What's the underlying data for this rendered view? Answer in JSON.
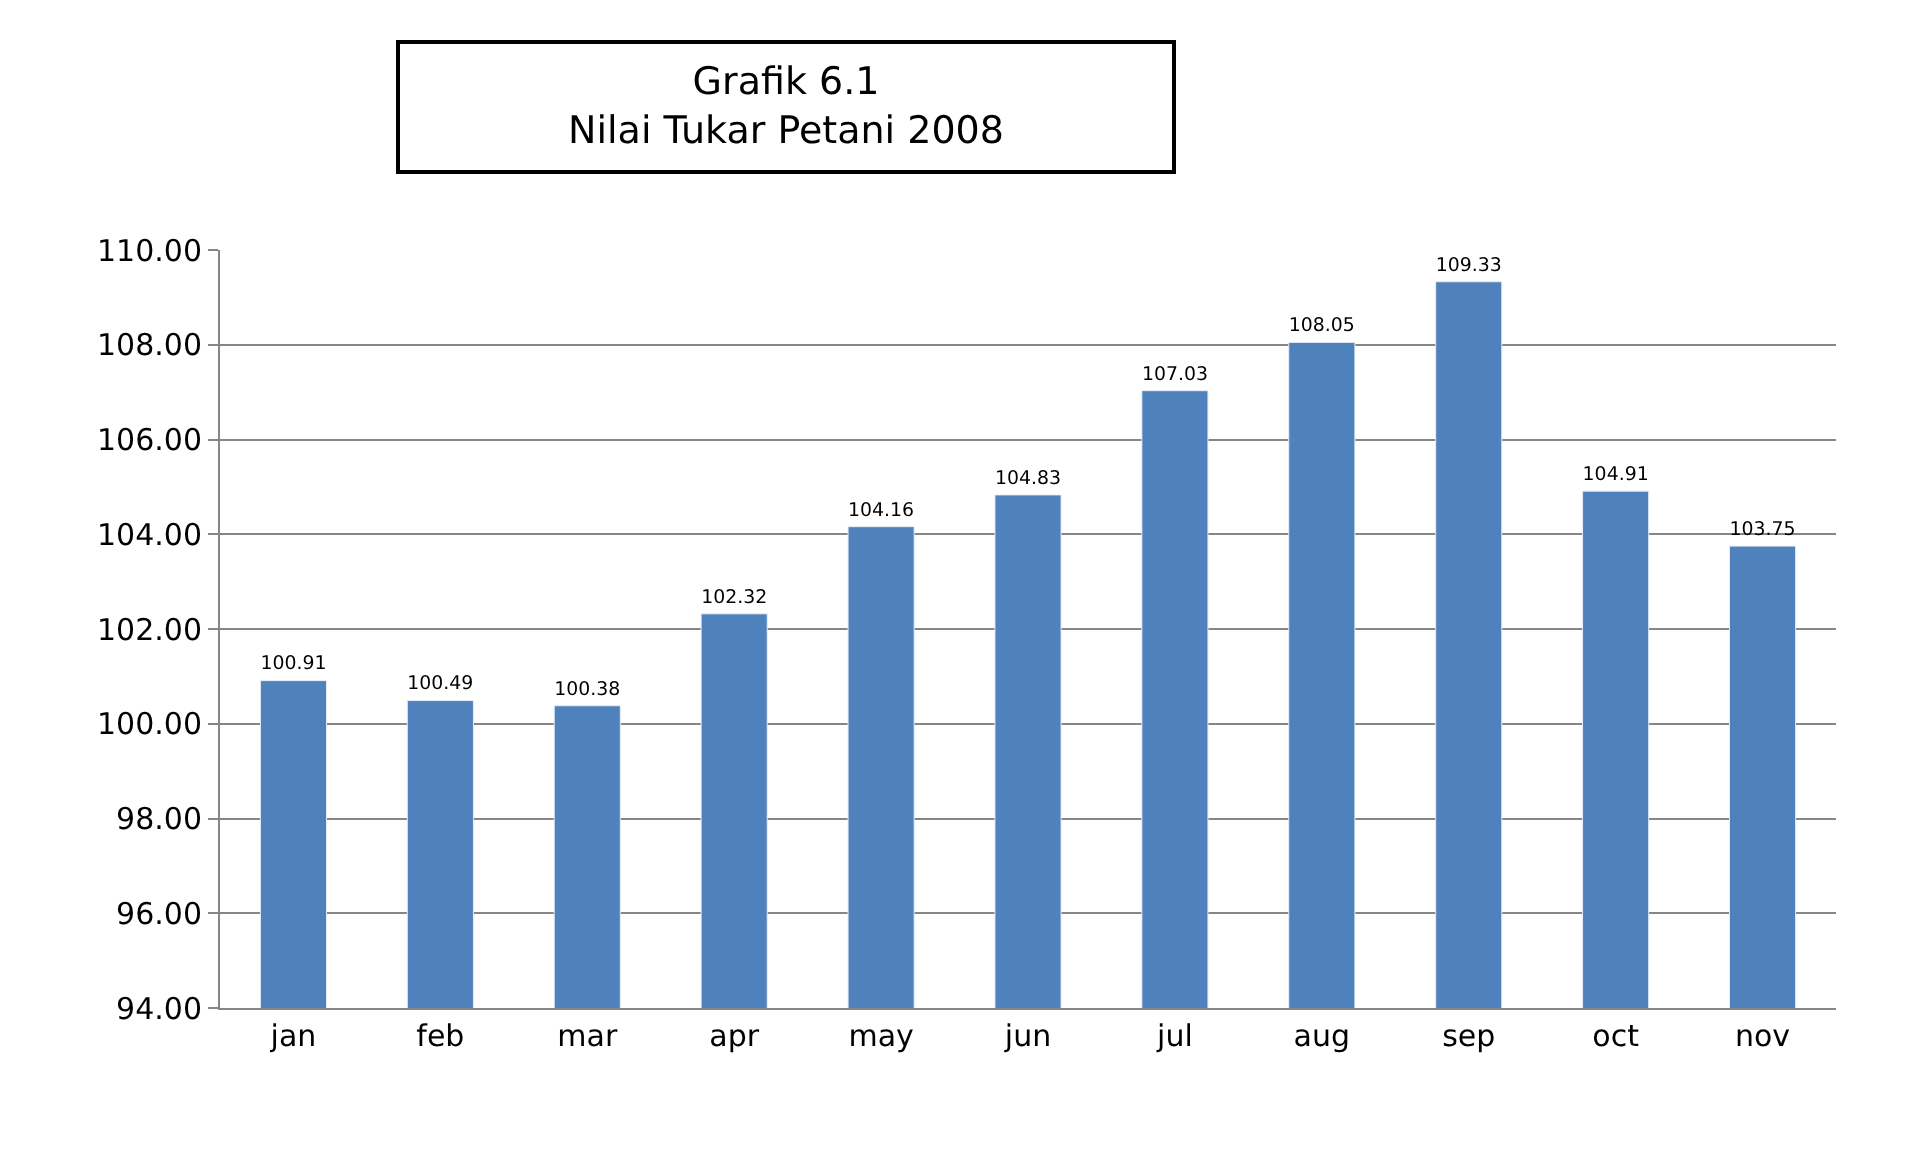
{
  "chart_data": {
    "type": "bar",
    "title": "Grafik 6.1\nNilai Tukar Petani 2008",
    "categories": [
      "jan",
      "feb",
      "mar",
      "apr",
      "may",
      "jun",
      "jul",
      "aug",
      "sep",
      "oct",
      "nov"
    ],
    "values": [
      100.91,
      100.49,
      100.38,
      102.32,
      104.16,
      104.83,
      107.03,
      108.05,
      109.33,
      104.91,
      103.75
    ],
    "color": "#4f81bd",
    "data_labels": true,
    "grid": "y",
    "legend": false,
    "ylim": [
      94,
      110
    ],
    "yticks": [
      {
        "value": 94,
        "label": "94.00"
      },
      {
        "value": 96,
        "label": "96.00"
      },
      {
        "value": 98,
        "label": "98.00"
      },
      {
        "value": 100,
        "label": "100.00"
      },
      {
        "value": 102,
        "label": "102.00"
      },
      {
        "value": 104,
        "label": "104.00"
      },
      {
        "value": 106,
        "label": "106.00"
      },
      {
        "value": 108,
        "label": "108.00"
      },
      {
        "value": 110,
        "label": "110.00"
      }
    ]
  }
}
